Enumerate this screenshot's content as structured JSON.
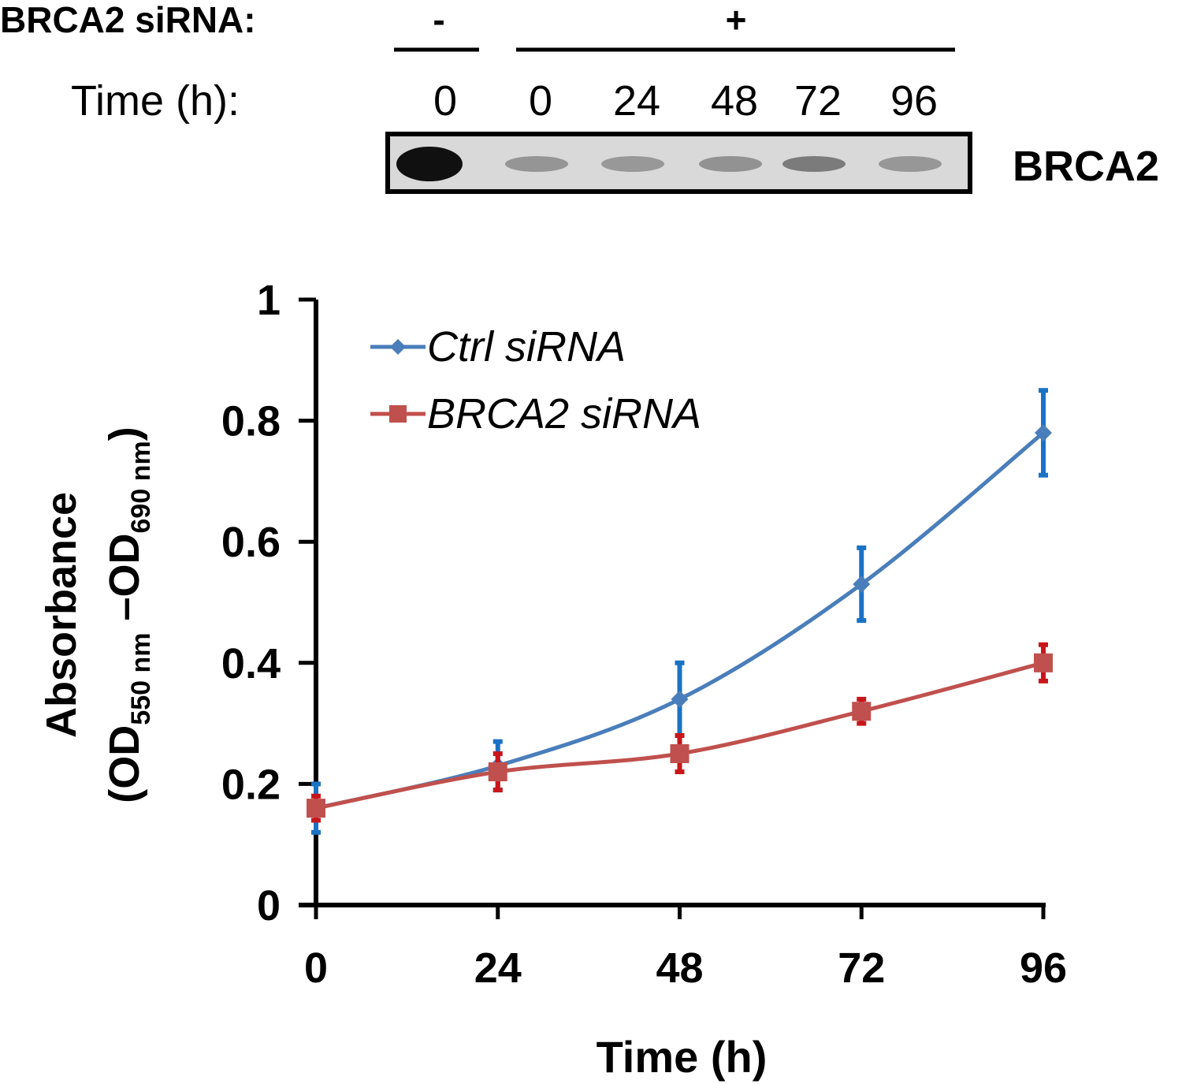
{
  "blot": {
    "sirna_label": "BRCA2 siRNA:",
    "minus_sign": "-",
    "plus_sign": "+",
    "time_label": "Time (h):",
    "lane_times": [
      "0",
      "0",
      "24",
      "48",
      "72",
      "96"
    ],
    "protein_label": "BRCA2",
    "band_intensities": [
      1.0,
      0.28,
      0.26,
      0.3,
      0.42,
      0.27
    ]
  },
  "chart_data": {
    "type": "line",
    "title": "",
    "xlabel": "Time (h)",
    "ylabel_main": "Absorbance",
    "ylabel_sub": {
      "open": "(OD",
      "sub1": "550 nm",
      "middle": " –OD",
      "sub2": "690 nm",
      "close": ")"
    },
    "x": [
      0,
      24,
      48,
      72,
      96
    ],
    "x_tick_labels": [
      "0",
      "24",
      "48",
      "72",
      "96"
    ],
    "y_tick_labels": [
      "0",
      "0.2",
      "0.4",
      "0.6",
      "0.8",
      "1"
    ],
    "y_ticks": [
      0,
      0.2,
      0.4,
      0.6,
      0.8,
      1
    ],
    "ylim": [
      0,
      1
    ],
    "xlim": [
      0,
      96
    ],
    "grid": false,
    "legend_position": "top-left",
    "series": [
      {
        "name": "Ctrl siRNA",
        "marker": "diamond",
        "color": "#4a7ebb",
        "error_color": "#1a72c4",
        "values": [
          0.16,
          0.23,
          0.34,
          0.53,
          0.78
        ],
        "errors": [
          0.04,
          0.04,
          0.06,
          0.06,
          0.07
        ]
      },
      {
        "name": "BRCA2 siRNA",
        "marker": "square",
        "color": "#c0504d",
        "error_color": "#c8161b",
        "values": [
          0.16,
          0.22,
          0.25,
          0.32,
          0.4
        ],
        "errors": [
          0.02,
          0.03,
          0.03,
          0.02,
          0.03
        ]
      }
    ]
  }
}
